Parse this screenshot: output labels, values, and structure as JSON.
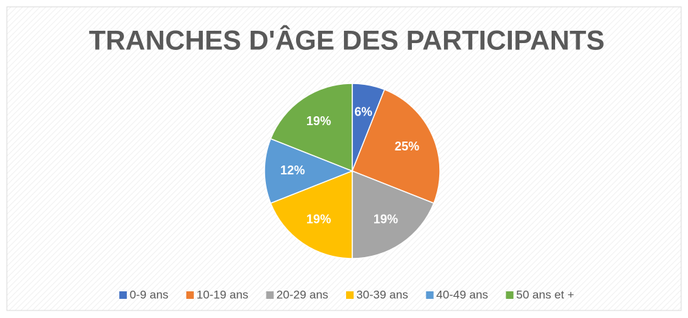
{
  "chart_data": {
    "type": "pie",
    "title": "TRANCHES D'ÂGE DES PARTICIPANTS",
    "categories": [
      "0-9 ans",
      "10-19 ans",
      "20-29 ans",
      "30-39 ans",
      "40-49 ans",
      "50 ans et +"
    ],
    "values": [
      6,
      25,
      19,
      19,
      12,
      19
    ],
    "value_labels": [
      "6%",
      "25%",
      "19%",
      "19%",
      "12%",
      "19%"
    ],
    "colors": [
      "#4472c4",
      "#ed7d31",
      "#a5a5a5",
      "#ffc000",
      "#5b9bd5",
      "#70ad47"
    ],
    "legend": "bottom"
  }
}
